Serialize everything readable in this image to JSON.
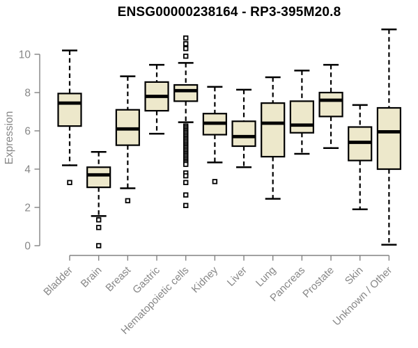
{
  "chart_data": {
    "type": "boxplot",
    "title": "ENSG00000238164 - RP3-395M20.8",
    "xlabel": "",
    "ylabel": "Expression",
    "ylim": [
      0,
      11.5
    ],
    "yticks": [
      0,
      2,
      4,
      6,
      8,
      10
    ],
    "grid": false,
    "legend": false,
    "categories": [
      "Bladder",
      "Brain",
      "Breast",
      "Gastric",
      "Hematopoietic cells",
      "Kidney",
      "Liver",
      "Lung",
      "Pancreas",
      "Prostate",
      "Skin",
      "Unknown / Other"
    ],
    "boxes": [
      {
        "category": "Bladder",
        "whisker_low": 4.2,
        "q1": 6.25,
        "median": 7.45,
        "q3": 7.95,
        "whisker_high": 10.2,
        "outliers": [
          3.3
        ]
      },
      {
        "category": "Brain",
        "whisker_low": 1.55,
        "q1": 3.05,
        "median": 3.7,
        "q3": 4.1,
        "whisker_high": 4.9,
        "outliers": [
          1.35,
          0.95,
          0.0
        ]
      },
      {
        "category": "Breast",
        "whisker_low": 3.0,
        "q1": 5.25,
        "median": 6.1,
        "q3": 7.1,
        "whisker_high": 8.85,
        "outliers": [
          2.35
        ]
      },
      {
        "category": "Gastric",
        "whisker_low": 5.85,
        "q1": 7.05,
        "median": 7.8,
        "q3": 8.55,
        "whisker_high": 9.45,
        "outliers": []
      },
      {
        "category": "Hematopoietic cells",
        "whisker_low": 6.45,
        "q1": 7.55,
        "median": 8.1,
        "q3": 8.4,
        "whisker_high": 9.55,
        "outliers": [
          10.85,
          10.55,
          10.3,
          9.9,
          6.25,
          6.17,
          6.09,
          6.01,
          5.93,
          5.85,
          5.77,
          5.69,
          5.61,
          5.53,
          5.45,
          5.37,
          5.29,
          5.21,
          5.13,
          5.05,
          4.97,
          4.89,
          4.81,
          4.73,
          4.65,
          4.57,
          4.49,
          4.41,
          4.33,
          4.25,
          3.8,
          3.65,
          3.3,
          2.65,
          2.1
        ]
      },
      {
        "category": "Kidney",
        "whisker_low": 4.35,
        "q1": 5.8,
        "median": 6.4,
        "q3": 6.9,
        "whisker_high": 8.3,
        "outliers": [
          3.35
        ]
      },
      {
        "category": "Liver",
        "whisker_low": 4.1,
        "q1": 5.2,
        "median": 5.7,
        "q3": 6.5,
        "whisker_high": 8.15,
        "outliers": []
      },
      {
        "category": "Lung",
        "whisker_low": 2.45,
        "q1": 4.65,
        "median": 6.4,
        "q3": 7.45,
        "whisker_high": 8.8,
        "outliers": []
      },
      {
        "category": "Pancreas",
        "whisker_low": 4.8,
        "q1": 5.9,
        "median": 6.3,
        "q3": 7.55,
        "whisker_high": 9.15,
        "outliers": []
      },
      {
        "category": "Prostate",
        "whisker_low": 5.1,
        "q1": 6.75,
        "median": 7.6,
        "q3": 8.0,
        "whisker_high": 9.45,
        "outliers": []
      },
      {
        "category": "Skin",
        "whisker_low": 1.9,
        "q1": 4.45,
        "median": 5.4,
        "q3": 6.2,
        "whisker_high": 7.35,
        "outliers": []
      },
      {
        "category": "Unknown / Other",
        "whisker_low": 0.05,
        "q1": 4.0,
        "median": 5.95,
        "q3": 7.2,
        "whisker_high": 11.3,
        "outliers": []
      }
    ],
    "style": {
      "box_fill": "#ede8cb",
      "box_stroke": "#000000",
      "median_color": "#000000",
      "whisker_color": "#000000",
      "outlier_fill": "#ffffff",
      "outlier_stroke": "#000000",
      "axis_color": "#828282",
      "tick_label_color": "#878787",
      "title_color": "#000000",
      "background": "#ffffff"
    }
  }
}
